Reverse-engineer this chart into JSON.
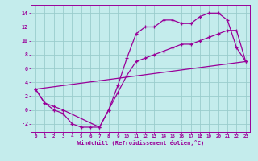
{
  "bg_color": "#c4ecec",
  "grid_color": "#99cccc",
  "line_color": "#990099",
  "line1_x": [
    0,
    1,
    2,
    3,
    4,
    5,
    6,
    7,
    8,
    9,
    10,
    11,
    12,
    13,
    14,
    15,
    16,
    17,
    18,
    19,
    20,
    21,
    22,
    23
  ],
  "line1_y": [
    3,
    1,
    0,
    -0.5,
    -2,
    -2.5,
    -2.5,
    -2.5,
    0.0,
    3.5,
    7.5,
    11.0,
    12.0,
    12.0,
    13.0,
    13.0,
    12.5,
    12.5,
    13.5,
    14.0,
    14.0,
    13.0,
    9.0,
    7.0
  ],
  "line2_x": [
    0,
    1,
    2,
    3,
    7,
    8,
    9,
    10,
    11,
    12,
    13,
    14,
    15,
    16,
    17,
    18,
    19,
    20,
    21,
    22,
    23
  ],
  "line2_y": [
    3,
    1,
    0.5,
    0.0,
    -2.5,
    0.0,
    2.5,
    5.0,
    7.0,
    7.5,
    8.0,
    8.5,
    9.0,
    9.5,
    9.5,
    10.0,
    10.5,
    11.0,
    11.5,
    11.5,
    7.0
  ],
  "line3_x": [
    0,
    23
  ],
  "line3_y": [
    3,
    7
  ],
  "xlim_min": -0.5,
  "xlim_max": 23.5,
  "ylim_min": -3.2,
  "ylim_max": 15.2,
  "yticks": [
    -2,
    0,
    2,
    4,
    6,
    8,
    10,
    12,
    14
  ],
  "xticks": [
    0,
    1,
    2,
    3,
    4,
    5,
    6,
    7,
    8,
    9,
    10,
    11,
    12,
    13,
    14,
    15,
    16,
    17,
    18,
    19,
    20,
    21,
    22,
    23
  ],
  "xlabel": "Windchill (Refroidissement éolien,°C)"
}
